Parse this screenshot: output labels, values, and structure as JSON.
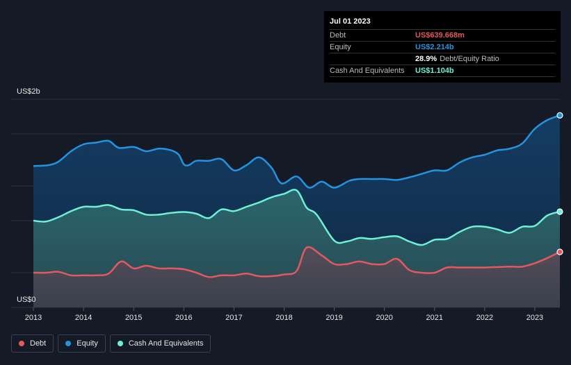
{
  "chart_data": {
    "type": "area",
    "title": "",
    "ylabel_top": "US$2b",
    "ylabel_bottom": "US$0",
    "ylim": [
      0,
      2.4
    ],
    "xlim": [
      2013,
      2023.5
    ],
    "x_ticks": [
      "2013",
      "2014",
      "2015",
      "2016",
      "2017",
      "2018",
      "2019",
      "2020",
      "2021",
      "2022",
      "2023"
    ],
    "series": [
      {
        "name": "Equity",
        "color": "#2394df",
        "points": [
          [
            2013.0,
            1.63
          ],
          [
            2013.3,
            1.64
          ],
          [
            2013.5,
            1.68
          ],
          [
            2013.75,
            1.8
          ],
          [
            2014.0,
            1.88
          ],
          [
            2014.25,
            1.9
          ],
          [
            2014.5,
            1.92
          ],
          [
            2014.7,
            1.84
          ],
          [
            2015.0,
            1.85
          ],
          [
            2015.25,
            1.8
          ],
          [
            2015.5,
            1.83
          ],
          [
            2015.75,
            1.81
          ],
          [
            2015.9,
            1.76
          ],
          [
            2016.0,
            1.65
          ],
          [
            2016.1,
            1.64
          ],
          [
            2016.25,
            1.69
          ],
          [
            2016.5,
            1.69
          ],
          [
            2016.75,
            1.71
          ],
          [
            2017.0,
            1.58
          ],
          [
            2017.25,
            1.64
          ],
          [
            2017.5,
            1.73
          ],
          [
            2017.75,
            1.61
          ],
          [
            2017.95,
            1.43
          ],
          [
            2018.25,
            1.51
          ],
          [
            2018.5,
            1.38
          ],
          [
            2018.75,
            1.45
          ],
          [
            2019.0,
            1.38
          ],
          [
            2019.3,
            1.46
          ],
          [
            2019.5,
            1.48
          ],
          [
            2019.75,
            1.48
          ],
          [
            2020.0,
            1.48
          ],
          [
            2020.25,
            1.47
          ],
          [
            2020.5,
            1.5
          ],
          [
            2020.75,
            1.54
          ],
          [
            2021.0,
            1.58
          ],
          [
            2021.25,
            1.58
          ],
          [
            2021.5,
            1.67
          ],
          [
            2021.75,
            1.73
          ],
          [
            2022.0,
            1.76
          ],
          [
            2022.25,
            1.81
          ],
          [
            2022.5,
            1.83
          ],
          [
            2022.75,
            1.89
          ],
          [
            2023.0,
            2.06
          ],
          [
            2023.25,
            2.16
          ],
          [
            2023.5,
            2.214
          ]
        ]
      },
      {
        "name": "Cash And Equivalents",
        "color": "#6ef0d8",
        "points": [
          [
            2013.0,
            1.0
          ],
          [
            2013.25,
            0.99
          ],
          [
            2013.5,
            1.04
          ],
          [
            2013.75,
            1.11
          ],
          [
            2014.0,
            1.16
          ],
          [
            2014.25,
            1.16
          ],
          [
            2014.5,
            1.18
          ],
          [
            2014.75,
            1.13
          ],
          [
            2015.0,
            1.12
          ],
          [
            2015.25,
            1.07
          ],
          [
            2015.5,
            1.07
          ],
          [
            2015.75,
            1.09
          ],
          [
            2016.0,
            1.1
          ],
          [
            2016.25,
            1.08
          ],
          [
            2016.5,
            1.03
          ],
          [
            2016.75,
            1.13
          ],
          [
            2017.0,
            1.11
          ],
          [
            2017.25,
            1.16
          ],
          [
            2017.5,
            1.21
          ],
          [
            2017.75,
            1.27
          ],
          [
            2018.0,
            1.31
          ],
          [
            2018.25,
            1.35
          ],
          [
            2018.45,
            1.15
          ],
          [
            2018.65,
            1.07
          ],
          [
            2019.0,
            0.77
          ],
          [
            2019.25,
            0.76
          ],
          [
            2019.5,
            0.8
          ],
          [
            2019.75,
            0.79
          ],
          [
            2020.0,
            0.81
          ],
          [
            2020.25,
            0.82
          ],
          [
            2020.5,
            0.76
          ],
          [
            2020.75,
            0.72
          ],
          [
            2021.0,
            0.78
          ],
          [
            2021.25,
            0.79
          ],
          [
            2021.5,
            0.87
          ],
          [
            2021.75,
            0.93
          ],
          [
            2022.0,
            0.93
          ],
          [
            2022.25,
            0.9
          ],
          [
            2022.5,
            0.86
          ],
          [
            2022.75,
            0.93
          ],
          [
            2023.0,
            0.94
          ],
          [
            2023.25,
            1.06
          ],
          [
            2023.5,
            1.104
          ]
        ]
      },
      {
        "name": "Debt",
        "color": "#e4585f",
        "points": [
          [
            2013.0,
            0.4
          ],
          [
            2013.25,
            0.4
          ],
          [
            2013.5,
            0.41
          ],
          [
            2013.75,
            0.37
          ],
          [
            2014.0,
            0.37
          ],
          [
            2014.25,
            0.37
          ],
          [
            2014.5,
            0.39
          ],
          [
            2014.75,
            0.53
          ],
          [
            2015.0,
            0.45
          ],
          [
            2015.25,
            0.48
          ],
          [
            2015.5,
            0.45
          ],
          [
            2015.75,
            0.45
          ],
          [
            2016.0,
            0.44
          ],
          [
            2016.25,
            0.4
          ],
          [
            2016.5,
            0.35
          ],
          [
            2016.75,
            0.37
          ],
          [
            2017.0,
            0.37
          ],
          [
            2017.25,
            0.39
          ],
          [
            2017.5,
            0.36
          ],
          [
            2017.75,
            0.36
          ],
          [
            2018.0,
            0.38
          ],
          [
            2018.25,
            0.42
          ],
          [
            2018.45,
            0.69
          ],
          [
            2018.75,
            0.6
          ],
          [
            2019.0,
            0.5
          ],
          [
            2019.25,
            0.5
          ],
          [
            2019.5,
            0.53
          ],
          [
            2019.75,
            0.5
          ],
          [
            2020.0,
            0.5
          ],
          [
            2020.25,
            0.56
          ],
          [
            2020.5,
            0.43
          ],
          [
            2020.75,
            0.4
          ],
          [
            2021.0,
            0.4
          ],
          [
            2021.25,
            0.46
          ],
          [
            2021.5,
            0.46
          ],
          [
            2021.75,
            0.46
          ],
          [
            2022.0,
            0.46
          ],
          [
            2022.5,
            0.47
          ],
          [
            2022.75,
            0.47
          ],
          [
            2023.0,
            0.51
          ],
          [
            2023.25,
            0.57
          ],
          [
            2023.5,
            0.64
          ]
        ]
      }
    ]
  },
  "tooltip": {
    "date": "Jul 01 2023",
    "rows": [
      {
        "label": "Debt",
        "value": "US$639.668m",
        "color": "#e4585f"
      },
      {
        "label": "Equity",
        "value": "US$2.214b",
        "color": "#2394df"
      },
      {
        "label": "",
        "value": "28.9%",
        "suffix": "Debt/Equity Ratio",
        "color": "#ffffff"
      },
      {
        "label": "Cash And Equivalents",
        "value": "US$1.104b",
        "color": "#6ef0d8"
      }
    ]
  },
  "legend": [
    {
      "label": "Debt",
      "color": "#e4585f"
    },
    {
      "label": "Equity",
      "color": "#2394df"
    },
    {
      "label": "Cash And Equivalents",
      "color": "#6ef0d8"
    }
  ]
}
